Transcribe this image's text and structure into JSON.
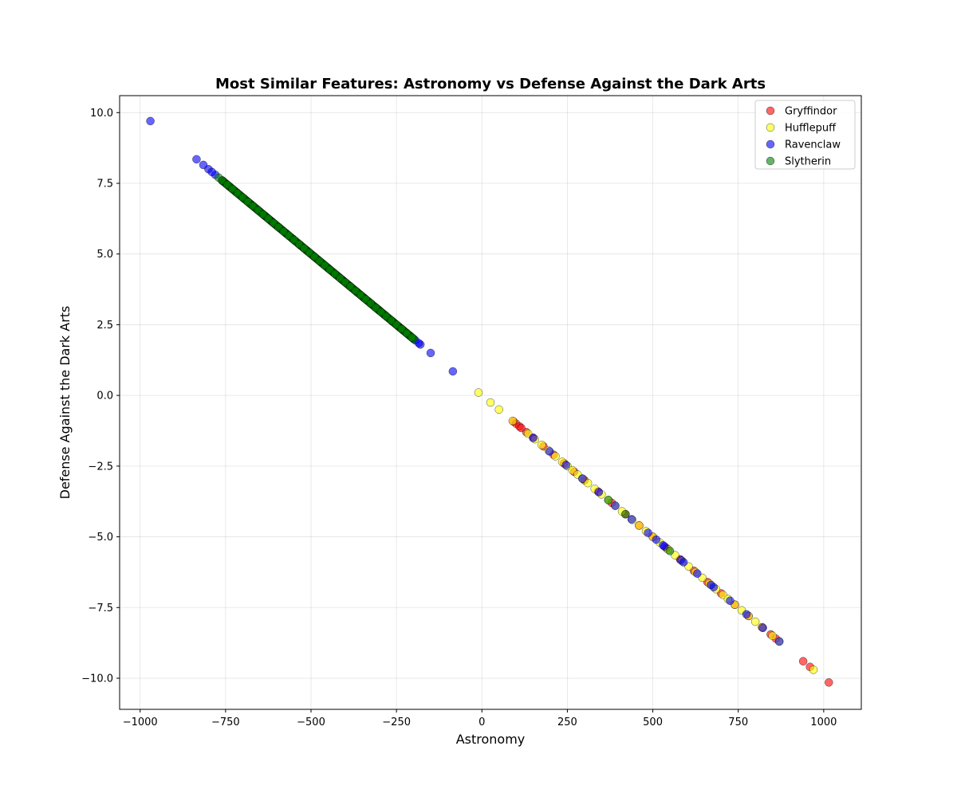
{
  "chart_data": {
    "type": "scatter",
    "title": "Most Similar Features: Astronomy vs Defense Against the Dark Arts",
    "xlabel": "Astronomy",
    "ylabel": "Defense Against the Dark Arts",
    "xlim": [
      -1060,
      1110
    ],
    "ylim": [
      -11.1,
      10.6
    ],
    "xticks": [
      -1000,
      -750,
      -500,
      -250,
      0,
      250,
      500,
      750,
      1000
    ],
    "xtick_labels": [
      "−1000",
      "−750",
      "−500",
      "−250",
      "0",
      "250",
      "500",
      "750",
      "1000"
    ],
    "yticks": [
      -10,
      -7.5,
      -5,
      -2.5,
      0,
      2.5,
      5,
      7.5,
      10
    ],
    "ytick_labels": [
      "−10.0",
      "−7.5",
      "−5.0",
      "−2.5",
      "0.0",
      "2.5",
      "5.0",
      "7.5",
      "10.0"
    ],
    "grid": true,
    "legend_position": "top-right",
    "series": [
      {
        "name": "Gryffindor",
        "color": "#ff0000",
        "x": [
          92,
          100,
          110,
          115,
          130,
          150,
          180,
          210,
          240,
          270,
          300,
          340,
          380,
          420,
          460,
          500,
          540,
          580,
          620,
          660,
          700,
          740,
          780,
          820,
          845,
          860,
          940,
          960,
          1015
        ],
        "y": [
          -0.92,
          -1.0,
          -1.1,
          -1.15,
          -1.3,
          -1.5,
          -1.8,
          -2.1,
          -2.4,
          -2.7,
          -3.0,
          -3.4,
          -3.8,
          -4.2,
          -4.6,
          -5.0,
          -5.4,
          -5.8,
          -6.2,
          -6.6,
          -7.0,
          -7.4,
          -7.8,
          -8.2,
          -8.45,
          -8.6,
          -9.4,
          -9.6,
          -10.15
        ]
      },
      {
        "name": "Hufflepuff",
        "color": "#ffff00",
        "x": [
          -10,
          25,
          50,
          90,
          135,
          155,
          175,
          195,
          215,
          235,
          250,
          265,
          280,
          295,
          310,
          330,
          350,
          370,
          390,
          410,
          440,
          460,
          480,
          500,
          520,
          545,
          565,
          585,
          605,
          625,
          645,
          665,
          685,
          705,
          720,
          740,
          760,
          780,
          800,
          820,
          850,
          870,
          970
        ],
        "y": [
          0.1,
          -0.25,
          -0.5,
          -0.9,
          -1.35,
          -1.55,
          -1.75,
          -1.95,
          -2.15,
          -2.35,
          -2.5,
          -2.65,
          -2.8,
          -2.95,
          -3.1,
          -3.3,
          -3.5,
          -3.7,
          -3.9,
          -4.1,
          -4.4,
          -4.6,
          -4.8,
          -5.0,
          -5.2,
          -5.45,
          -5.65,
          -5.85,
          -6.05,
          -6.25,
          -6.45,
          -6.65,
          -6.85,
          -7.05,
          -7.2,
          -7.4,
          -7.6,
          -7.8,
          -8.0,
          -8.2,
          -8.5,
          -8.7,
          -9.7
        ]
      },
      {
        "name": "Ravenclaw",
        "color": "#0000ff",
        "x": [
          -970,
          -835,
          -815,
          -800,
          -790,
          -310,
          -300,
          -260,
          -230,
          -210,
          -195,
          -185,
          -150,
          -85,
          510,
          530,
          590,
          670
        ],
        "y": [
          9.7,
          8.35,
          8.15,
          8.0,
          7.9,
          3.1,
          3.0,
          2.6,
          2.3,
          2.1,
          1.95,
          1.85,
          1.5,
          0.85,
          -5.1,
          -5.3,
          -5.9,
          -6.7
        ],
        "dense_ranges": [
          {
            "x_from": -780,
            "x_to": -180,
            "n": 30
          },
          {
            "x_from": 150,
            "x_to": 870,
            "n": 16
          }
        ]
      },
      {
        "name": "Slytherin",
        "color": "#008000",
        "x": [
          -770,
          -760,
          -745,
          -730,
          -715,
          -700,
          -685,
          -670,
          -655,
          -640,
          -625,
          -610,
          -595,
          -580,
          -565,
          -550,
          -535,
          -520,
          -505,
          -490,
          -475,
          -460,
          -445,
          -430,
          -415,
          -400,
          -385,
          -370,
          -355,
          -340,
          -325,
          -310,
          -295,
          -280,
          -265,
          -250,
          -235,
          -220,
          -205,
          370,
          420,
          550
        ],
        "y": [
          7.7,
          7.6,
          7.45,
          7.3,
          7.15,
          7.0,
          6.85,
          6.7,
          6.55,
          6.4,
          6.25,
          6.1,
          5.95,
          5.8,
          5.65,
          5.5,
          5.35,
          5.2,
          5.05,
          4.9,
          4.75,
          4.6,
          4.45,
          4.3,
          4.15,
          4.0,
          3.85,
          3.7,
          3.55,
          3.4,
          3.25,
          3.1,
          2.95,
          2.8,
          2.65,
          2.5,
          2.35,
          2.2,
          2.05,
          -3.7,
          -4.2,
          -5.5
        ],
        "dense_ranges": [
          {
            "x_from": -760,
            "x_to": -200,
            "n": 170
          }
        ]
      }
    ]
  }
}
